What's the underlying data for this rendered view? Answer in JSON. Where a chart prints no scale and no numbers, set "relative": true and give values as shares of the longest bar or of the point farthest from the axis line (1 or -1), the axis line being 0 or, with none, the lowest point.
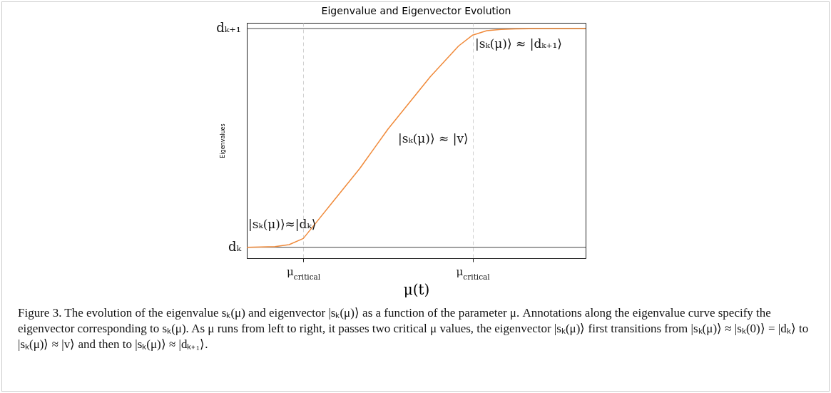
{
  "chart_data": {
    "type": "line",
    "title": "Eigenvalue and Eigenvector Evolution",
    "xlabel": "μ(t)",
    "ylabel": "Eigenvalues",
    "relative": true,
    "categories": [
      null,
      null,
      null,
      null,
      "μ$_{critical}$",
      null,
      null,
      null,
      null,
      null,
      null,
      null,
      null,
      null,
      null,
      null,
      "μ$_{critical}$",
      null,
      null,
      null,
      null,
      null,
      null,
      null,
      null
    ],
    "series": [
      {
        "color": "#f08a3a",
        "values": [
          0,
          0.001,
          0.003,
          0.012,
          0.04,
          0.12,
          0.2,
          0.28,
          0.36,
          0.45,
          0.54,
          0.62,
          0.7,
          0.78,
          0.85,
          0.92,
          0.97,
          0.99,
          0.996,
          0.998,
          0.999,
          1,
          1,
          1,
          1
        ]
      }
    ],
    "ref_lines": [
      {
        "axis": "y",
        "value": 0,
        "label": "dₖ",
        "color": "#444444",
        "line_style": "solid"
      },
      {
        "axis": "y",
        "value": 1,
        "label": "dₖ₊₁",
        "color": "#444444",
        "line_style": "solid"
      }
    ],
    "annotations": [
      "|sₖ(μ)⟩≈|dₖ⟩",
      "|sₖ(μ)⟩ ≈ |v⟩",
      "|sₖ(μ)⟩ ≈ |dₖ₊₁⟩",
      "Figure 3. The evolution of the eigenvalue sₖ(μ) and eigenvector |sₖ(μ)⟩ as a function of the parameter μ. Annotations along the eigenvalue curve specify the eigenvector corresponding to sₖ(μ). As μ runs from left to right, it passes two critical μ values, the eigenvector |sₖ(μ)⟩ first transitions from |sₖ(μ)⟩ ≈ |sₖ(0)⟩ = |dₖ⟩ to |sₖ(μ)⟩ ≈ |v⟩ and then to |sₖ(μ)⟩ ≈ |dₖ₊₁⟩."
    ],
    "marker": "none",
    "line_style": "solid",
    "grid": "x"
  }
}
